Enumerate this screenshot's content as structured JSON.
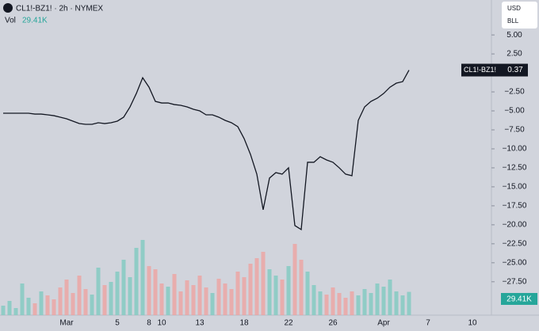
{
  "chart_data": {
    "type": "line",
    "title": "CL1!-BZ1! · 2h · NYMEX",
    "currency": "USD",
    "unit": "BLL",
    "categories": [
      null,
      null,
      null,
      null,
      null,
      null,
      null,
      null,
      null,
      null,
      "Mar",
      null,
      null,
      null,
      null,
      null,
      null,
      null,
      "5",
      null,
      null,
      null,
      null,
      "8",
      null,
      "10",
      null,
      null,
      null,
      null,
      null,
      "13",
      null,
      null,
      null,
      null,
      null,
      null,
      "18",
      null,
      null,
      null,
      null,
      null,
      null,
      "22",
      null,
      null,
      null,
      null,
      null,
      null,
      "26",
      null,
      null,
      null,
      null,
      null,
      null,
      null,
      "Apr",
      null,
      null,
      null,
      null,
      null,
      null,
      "7",
      null,
      null,
      null,
      null,
      null,
      null,
      "10"
    ],
    "series": [
      {
        "name": "CL1!-BZ1!",
        "color": "#131722",
        "values": [
          -5.31,
          -5.31,
          -5.31,
          -5.31,
          -5.31,
          -5.42,
          -5.42,
          -5.52,
          -5.63,
          -5.83,
          -6.04,
          -6.35,
          -6.67,
          -6.77,
          -6.77,
          -6.56,
          -6.67,
          -6.56,
          -6.35,
          -5.83,
          -4.48,
          -2.71,
          -0.63,
          -1.88,
          -3.75,
          -3.96,
          -3.96,
          -4.17,
          -4.27,
          -4.48,
          -4.79,
          -5.0,
          -5.52,
          -5.52,
          -5.83,
          -6.25,
          -6.56,
          -7.08,
          -8.65,
          -10.73,
          -13.33,
          -18.02,
          -13.85,
          -13.13,
          -13.33,
          -12.5,
          -20.1,
          -20.63,
          -11.77,
          -11.77,
          -11.04,
          -11.46,
          -11.77,
          -12.5,
          -13.33,
          -13.54,
          -6.25,
          -4.48,
          -3.75,
          -3.33,
          -2.71,
          -1.88,
          -1.35,
          -1.15,
          0.37,
          null,
          null,
          null,
          null,
          null,
          null,
          null,
          null,
          null,
          null
        ]
      }
    ],
    "volume": {
      "name": "Vol",
      "value_label": "29.41K",
      "up_color": "#7fc9c0",
      "down_color": "#eea3a1",
      "ylim": [
        0,
        100
      ],
      "values": [
        12,
        18,
        9,
        40,
        22,
        15,
        30,
        25,
        20,
        35,
        45,
        28,
        50,
        33,
        26,
        60,
        38,
        42,
        55,
        70,
        48,
        85,
        95,
        62,
        58,
        40,
        36,
        52,
        30,
        44,
        38,
        50,
        35,
        28,
        46,
        40,
        33,
        55,
        48,
        65,
        72,
        80,
        58,
        50,
        45,
        62,
        90,
        70,
        55,
        38,
        30,
        26,
        35,
        28,
        22,
        30,
        25,
        33,
        28,
        40,
        36,
        45,
        30,
        25,
        29.41,
        null,
        null,
        null,
        null,
        null,
        null,
        null,
        null,
        null,
        null
      ]
    },
    "ylim": [
      -31.9,
      9.6
    ],
    "yticks": [
      {
        "value": 5,
        "label": "5.00"
      },
      {
        "value": 2.5,
        "label": "2.50"
      },
      {
        "value": -2.5,
        "label": "−2.50"
      },
      {
        "value": -5,
        "label": "−5.00"
      },
      {
        "value": -7.5,
        "label": "−7.50"
      },
      {
        "value": -10,
        "label": "−10.00"
      },
      {
        "value": -12.5,
        "label": "−12.50"
      },
      {
        "value": -15,
        "label": "−15.00"
      },
      {
        "value": -17.5,
        "label": "−17.50"
      },
      {
        "value": -20,
        "label": "−20.00"
      },
      {
        "value": -22.5,
        "label": "−22.50"
      },
      {
        "value": -25,
        "label": "−25.00"
      },
      {
        "value": -27.5,
        "label": "−27.50"
      }
    ]
  }
}
